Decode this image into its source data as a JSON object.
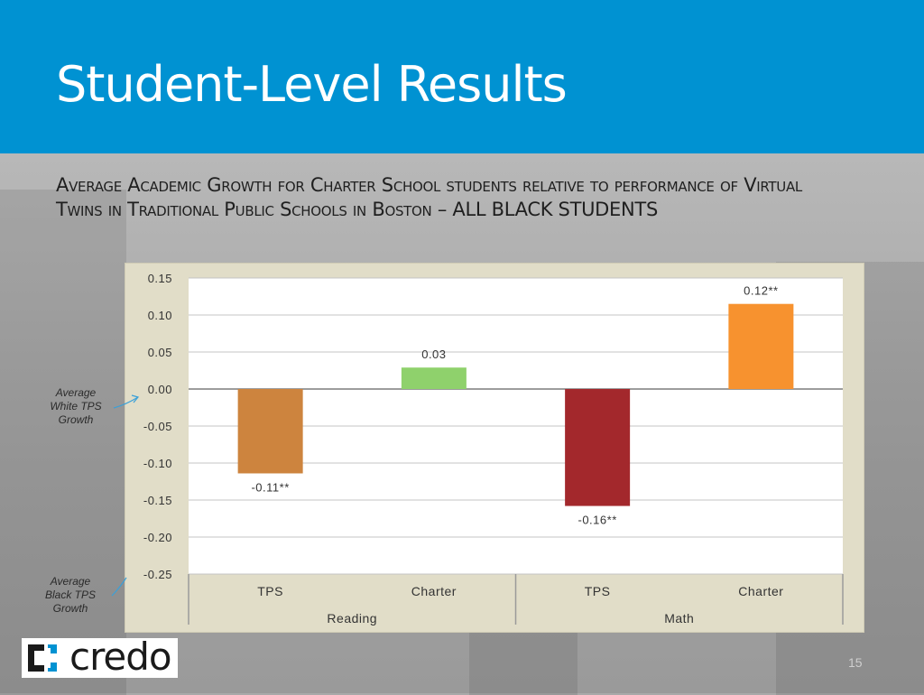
{
  "slide": {
    "title": "Student-Level Results",
    "subtitle": "Average Academic Growth for Charter School students relative to performance of Virtual Twins in Traditional Public Schools in Boston – ALL BLACK STUDENTS",
    "page_number": "15"
  },
  "annotations": {
    "white_tps": "Average White TPS Growth",
    "black_tps": "Average Black TPS Growth"
  },
  "logo": {
    "text": "credo"
  },
  "colors": {
    "header": "#0092d2",
    "chart_background": "#e1ddc8",
    "plot_background": "#ffffff",
    "annotation_arrow": "#3aa0d8"
  },
  "chart_data": {
    "type": "bar",
    "title": "",
    "xlabel": "",
    "ylabel": "",
    "ylim": [
      -0.25,
      0.15
    ],
    "yticks": [
      "0.15",
      "0.10",
      "0.05",
      "0.00",
      "-0.05",
      "-0.10",
      "-0.15",
      "-0.20",
      "-0.25"
    ],
    "grid": true,
    "groups": [
      "Reading",
      "Math"
    ],
    "categories": [
      "TPS",
      "Charter",
      "TPS",
      "Charter"
    ],
    "category_group": [
      0,
      0,
      1,
      1
    ],
    "values": [
      -0.114,
      0.029,
      -0.158,
      0.115
    ],
    "labels": [
      "-0.11**",
      "0.03",
      "-0.16**",
      "0.12**"
    ],
    "colors": [
      "#cd843e",
      "#8fd16c",
      "#a3282c",
      "#f7922f"
    ]
  }
}
